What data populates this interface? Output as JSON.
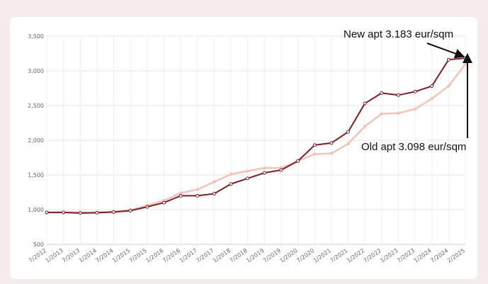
{
  "chart_data": {
    "type": "line",
    "title": "",
    "xlabel": "",
    "ylabel": "",
    "ylim": [
      500,
      3500
    ],
    "y_ticks": [
      500,
      1000,
      1500,
      2000,
      2500,
      3000,
      3500
    ],
    "y_tick_labels": [
      "500",
      "1,000",
      "1,500",
      "2,000",
      "2,500",
      "3,000",
      "3,500"
    ],
    "x_tick_labels": [
      "7/2012",
      "1/2013",
      "7/2013",
      "1/2014",
      "7/2014",
      "1/2015",
      "7/2015",
      "1/2016",
      "7/2016",
      "1/2017",
      "7/2017",
      "1/2018",
      "7/2018",
      "1/2019",
      "7/2019",
      "1/2020",
      "7/2020",
      "1/2021",
      "7/2021",
      "1/2022",
      "7/2022",
      "1/2023",
      "7/2023",
      "1/2024",
      "7/2024",
      "2/2025"
    ],
    "grid": true,
    "series": [
      {
        "color": "#7a1f2b",
        "x": [
          "7/2012",
          "1/2013",
          "7/2013",
          "1/2014",
          "7/2014",
          "1/2015",
          "7/2015",
          "1/2016",
          "7/2016",
          "1/2017",
          "7/2017",
          "1/2018",
          "7/2018",
          "1/2019",
          "7/2019",
          "1/2020",
          "7/2020",
          "1/2021",
          "7/2021",
          "1/2022",
          "7/2022",
          "1/2023",
          "7/2023",
          "1/2024",
          "7/2024",
          "2/2025"
        ],
        "values": [
          960,
          960,
          950,
          955,
          965,
          985,
          1040,
          1100,
          1200,
          1200,
          1230,
          1370,
          1450,
          1530,
          1570,
          1700,
          1930,
          1960,
          2120,
          2530,
          2680,
          2650,
          2700,
          2780,
          3160,
          3183
        ]
      },
      {
        "color": "#f0c4b8",
        "x": [
          "7/2012",
          "1/2013",
          "7/2013",
          "1/2014",
          "7/2014",
          "1/2015",
          "7/2015",
          "1/2016",
          "7/2016",
          "1/2017",
          "7/2017",
          "1/2018",
          "7/2018",
          "1/2019",
          "7/2019",
          "1/2020",
          "7/2020",
          "1/2021",
          "7/2021",
          "1/2022",
          "7/2022",
          "1/2023",
          "7/2023",
          "1/2024",
          "7/2024",
          "2/2025"
        ],
        "values": [
          955,
          960,
          960,
          960,
          970,
          995,
          1060,
          1130,
          1240,
          1290,
          1400,
          1510,
          1555,
          1600,
          1600,
          1700,
          1800,
          1810,
          1950,
          2200,
          2380,
          2390,
          2450,
          2600,
          2780,
          3098
        ]
      }
    ],
    "annotations": [
      {
        "text": "New apt 3.183 eur/sqm",
        "x": "2/2025",
        "y": 3183
      },
      {
        "text": "Old apt 3.098 eur/sqm",
        "x": "2/2025",
        "y": 3098
      }
    ]
  }
}
